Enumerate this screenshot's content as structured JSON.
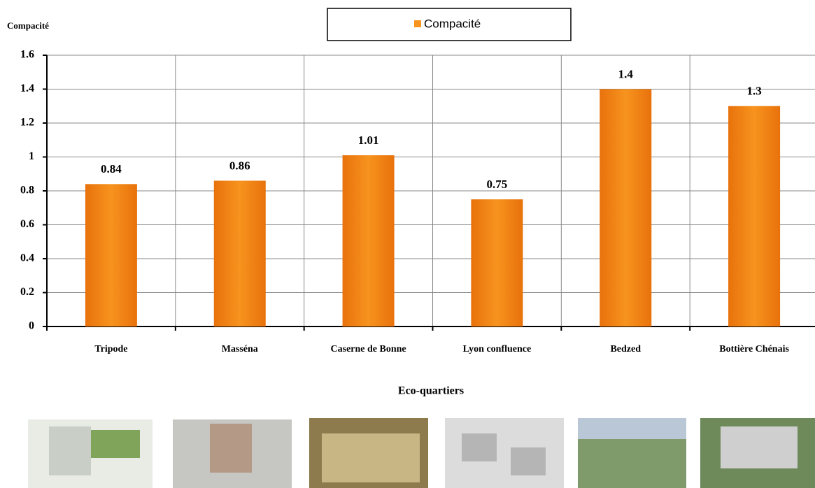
{
  "chart_data": {
    "type": "bar",
    "y_label": "Compacité",
    "x_label": "Eco-quartiers",
    "categories": [
      "Tripode",
      "Masséna",
      "Caserne de Bonne",
      "Lyon  confluence",
      "Bedzed",
      "Bottière Chénais"
    ],
    "series": [
      {
        "name": "Compacité",
        "color": "#f7931e",
        "values": [
          0.84,
          0.86,
          1.01,
          0.75,
          1.4,
          1.3
        ]
      }
    ],
    "ylim": [
      0,
      1.6
    ],
    "yticks": [
      0,
      0.2,
      0.4,
      0.6,
      0.8,
      1,
      1.2,
      1.4,
      1.6
    ],
    "grid": true,
    "legend": "top"
  }
}
